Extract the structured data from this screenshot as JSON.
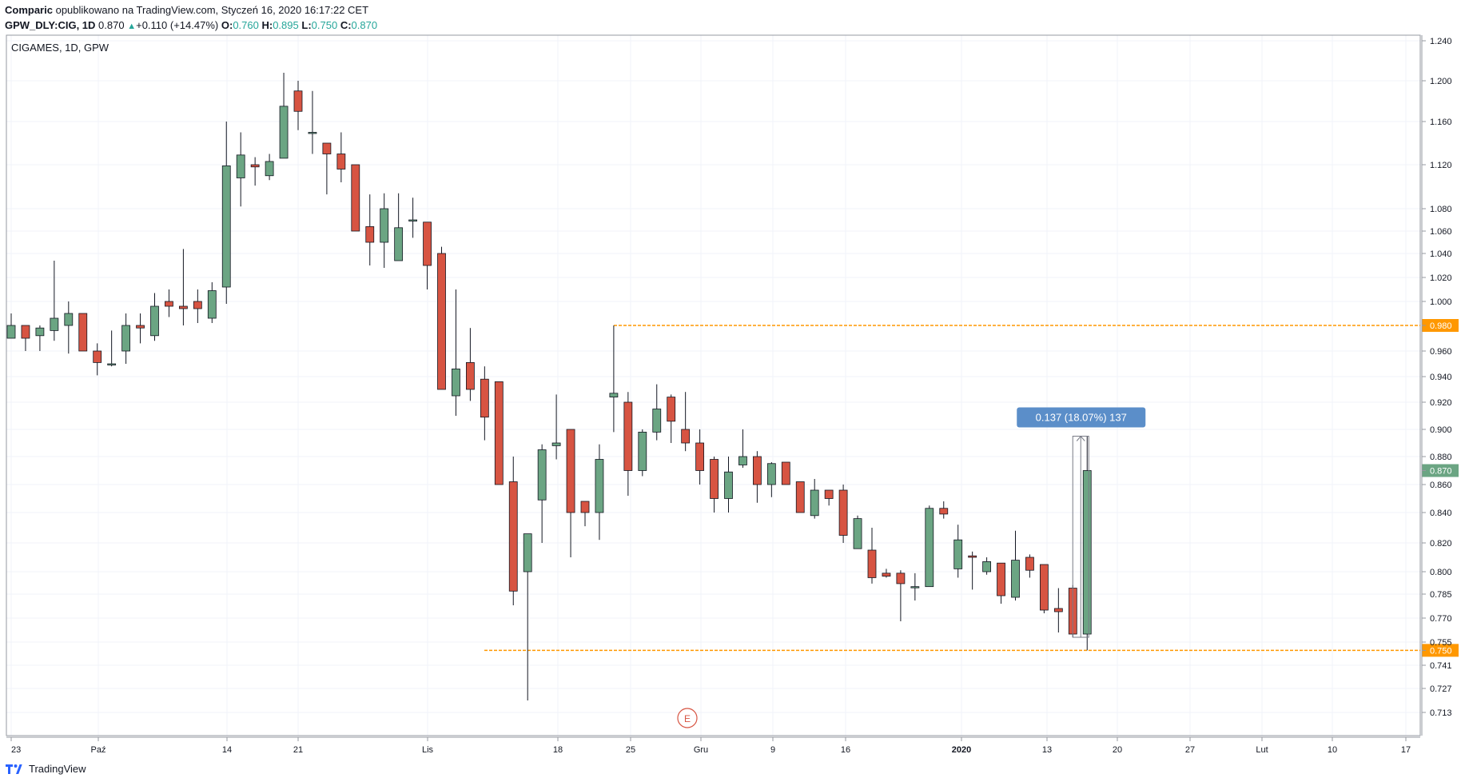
{
  "header": {
    "author": "Comparic",
    "published_text": "opublikowano na TradingView.com, Styczeń 16, 2020 16:17:22 CET",
    "symbol": "GPW_DLY:CIG, 1D",
    "last": "0.870",
    "change_arrow": "▲",
    "change": "+0.110 (+14.47%)",
    "o_label": "O:",
    "o_value": "0.760",
    "h_label": "H:",
    "h_value": "0.895",
    "l_label": "L:",
    "l_value": "0.750",
    "c_label": "C:",
    "c_value": "0.870"
  },
  "footer": {
    "brand": "TradingView"
  },
  "chart_data": {
    "type": "candlestick",
    "title": "CIGAMES, 1D, GPW",
    "colors": {
      "up": "#6ba583",
      "down": "#d75442",
      "level": "#ff9800",
      "measure": "#5b8ec9",
      "last": "#6ba583"
    },
    "y_ticks": [
      "1.240",
      "1.200",
      "1.160",
      "1.120",
      "1.080",
      "1.060",
      "1.040",
      "1.020",
      "1.000",
      "0.980",
      "0.960",
      "0.940",
      "0.920",
      "0.900",
      "0.880",
      "0.870",
      "0.860",
      "0.840",
      "0.820",
      "0.800",
      "0.785",
      "0.770",
      "0.755",
      "0.750",
      "0.741",
      "0.727",
      "0.713"
    ],
    "x_ticks": [
      "23",
      "Paź",
      "14",
      "21",
      "Lis",
      "18",
      "25",
      "Gru",
      "9",
      "16",
      "2020",
      "13",
      "20",
      "27",
      "Lut",
      "10",
      "17"
    ],
    "horizontal_levels": [
      {
        "value": 0.98,
        "label": "0.980"
      },
      {
        "value": 0.75,
        "label": "0.750"
      }
    ],
    "last_price": {
      "value": 0.87,
      "label": "0.870"
    },
    "measurement": {
      "from": 0.758,
      "to": 0.895,
      "label": "0.137 (18.07%) 137"
    },
    "event_marker": {
      "label": "E"
    },
    "candles": [
      {
        "o": 0.97,
        "h": 0.99,
        "l": 0.97,
        "c": 0.98
      },
      {
        "o": 0.98,
        "h": 0.98,
        "l": 0.96,
        "c": 0.97
      },
      {
        "o": 0.972,
        "h": 0.98,
        "l": 0.96,
        "c": 0.978
      },
      {
        "o": 0.976,
        "h": 1.034,
        "l": 0.968,
        "c": 0.986
      },
      {
        "o": 0.98,
        "h": 1.0,
        "l": 0.958,
        "c": 0.99
      },
      {
        "o": 0.99,
        "h": 0.99,
        "l": 0.96,
        "c": 0.96
      },
      {
        "o": 0.96,
        "h": 0.966,
        "l": 0.941,
        "c": 0.951
      },
      {
        "o": 0.95,
        "h": 0.976,
        "l": 0.948,
        "c": 0.95
      },
      {
        "o": 0.96,
        "h": 0.99,
        "l": 0.95,
        "c": 0.98
      },
      {
        "o": 0.98,
        "h": 0.99,
        "l": 0.966,
        "c": 0.978
      },
      {
        "o": 0.972,
        "h": 1.007,
        "l": 0.968,
        "c": 0.996
      },
      {
        "o": 1.0,
        "h": 1.01,
        "l": 0.987,
        "c": 0.996
      },
      {
        "o": 0.996,
        "h": 1.044,
        "l": 0.98,
        "c": 0.994
      },
      {
        "o": 1.0,
        "h": 1.01,
        "l": 0.982,
        "c": 0.994
      },
      {
        "o": 0.986,
        "h": 1.016,
        "l": 0.982,
        "c": 1.009
      },
      {
        "o": 1.012,
        "h": 1.16,
        "l": 0.998,
        "c": 1.119
      },
      {
        "o": 1.108,
        "h": 1.15,
        "l": 1.082,
        "c": 1.129
      },
      {
        "o": 1.12,
        "h": 1.127,
        "l": 1.101,
        "c": 1.118
      },
      {
        "o": 1.11,
        "h": 1.13,
        "l": 1.106,
        "c": 1.123
      },
      {
        "o": 1.126,
        "h": 1.208,
        "l": 1.127,
        "c": 1.175
      },
      {
        "o": 1.19,
        "h": 1.2,
        "l": 1.152,
        "c": 1.17
      },
      {
        "o": 1.15,
        "h": 1.19,
        "l": 1.13,
        "c": 1.15
      },
      {
        "o": 1.14,
        "h": 1.14,
        "l": 1.093,
        "c": 1.13
      },
      {
        "o": 1.13,
        "h": 1.15,
        "l": 1.104,
        "c": 1.116
      },
      {
        "o": 1.12,
        "h": 1.12,
        "l": 1.06,
        "c": 1.06
      },
      {
        "o": 1.064,
        "h": 1.093,
        "l": 1.03,
        "c": 1.05
      },
      {
        "o": 1.05,
        "h": 1.094,
        "l": 1.028,
        "c": 1.08
      },
      {
        "o": 1.034,
        "h": 1.094,
        "l": 1.034,
        "c": 1.063
      },
      {
        "o": 1.07,
        "h": 1.09,
        "l": 1.054,
        "c": 1.07
      },
      {
        "o": 1.068,
        "h": 1.068,
        "l": 1.01,
        "c": 1.03
      },
      {
        "o": 1.04,
        "h": 1.046,
        "l": 0.93,
        "c": 0.93
      },
      {
        "o": 0.925,
        "h": 1.01,
        "l": 0.91,
        "c": 0.946
      },
      {
        "o": 0.951,
        "h": 0.978,
        "l": 0.921,
        "c": 0.93
      },
      {
        "o": 0.938,
        "h": 0.948,
        "l": 0.892,
        "c": 0.909
      },
      {
        "o": 0.936,
        "h": 0.936,
        "l": 0.86,
        "c": 0.86
      },
      {
        "o": 0.862,
        "h": 0.88,
        "l": 0.778,
        "c": 0.787
      },
      {
        "o": 0.8,
        "h": 0.826,
        "l": 0.72,
        "c": 0.826
      },
      {
        "o": 0.849,
        "h": 0.889,
        "l": 0.82,
        "c": 0.885
      },
      {
        "o": 0.888,
        "h": 0.926,
        "l": 0.878,
        "c": 0.89
      },
      {
        "o": 0.9,
        "h": 0.9,
        "l": 0.81,
        "c": 0.84
      },
      {
        "o": 0.848,
        "h": 0.848,
        "l": 0.831,
        "c": 0.84
      },
      {
        "o": 0.84,
        "h": 0.889,
        "l": 0.822,
        "c": 0.878
      },
      {
        "o": 0.924,
        "h": 0.98,
        "l": 0.898,
        "c": 0.927
      },
      {
        "o": 0.92,
        "h": 0.928,
        "l": 0.852,
        "c": 0.87
      },
      {
        "o": 0.87,
        "h": 0.9,
        "l": 0.866,
        "c": 0.898
      },
      {
        "o": 0.898,
        "h": 0.934,
        "l": 0.892,
        "c": 0.915
      },
      {
        "o": 0.924,
        "h": 0.926,
        "l": 0.89,
        "c": 0.906
      },
      {
        "o": 0.9,
        "h": 0.928,
        "l": 0.884,
        "c": 0.89
      },
      {
        "o": 0.89,
        "h": 0.9,
        "l": 0.86,
        "c": 0.87
      },
      {
        "o": 0.878,
        "h": 0.88,
        "l": 0.84,
        "c": 0.85
      },
      {
        "o": 0.85,
        "h": 0.88,
        "l": 0.84,
        "c": 0.869
      },
      {
        "o": 0.874,
        "h": 0.9,
        "l": 0.872,
        "c": 0.88
      },
      {
        "o": 0.88,
        "h": 0.884,
        "l": 0.847,
        "c": 0.86
      },
      {
        "o": 0.86,
        "h": 0.876,
        "l": 0.851,
        "c": 0.875
      },
      {
        "o": 0.876,
        "h": 0.876,
        "l": 0.86,
        "c": 0.86
      },
      {
        "o": 0.862,
        "h": 0.862,
        "l": 0.84,
        "c": 0.84
      },
      {
        "o": 0.838,
        "h": 0.864,
        "l": 0.836,
        "c": 0.856
      },
      {
        "o": 0.856,
        "h": 0.856,
        "l": 0.845,
        "c": 0.85
      },
      {
        "o": 0.856,
        "h": 0.86,
        "l": 0.82,
        "c": 0.825
      },
      {
        "o": 0.816,
        "h": 0.838,
        "l": 0.816,
        "c": 0.836
      },
      {
        "o": 0.815,
        "h": 0.83,
        "l": 0.792,
        "c": 0.796
      },
      {
        "o": 0.799,
        "h": 0.802,
        "l": 0.796,
        "c": 0.797
      },
      {
        "o": 0.799,
        "h": 0.801,
        "l": 0.768,
        "c": 0.792
      },
      {
        "o": 0.79,
        "h": 0.799,
        "l": 0.781,
        "c": 0.79
      },
      {
        "o": 0.79,
        "h": 0.845,
        "l": 0.79,
        "c": 0.843
      },
      {
        "o": 0.843,
        "h": 0.848,
        "l": 0.836,
        "c": 0.839
      },
      {
        "o": 0.802,
        "h": 0.832,
        "l": 0.796,
        "c": 0.822
      },
      {
        "o": 0.811,
        "h": 0.814,
        "l": 0.788,
        "c": 0.81
      },
      {
        "o": 0.8,
        "h": 0.81,
        "l": 0.798,
        "c": 0.807
      },
      {
        "o": 0.806,
        "h": 0.806,
        "l": 0.779,
        "c": 0.784
      },
      {
        "o": 0.783,
        "h": 0.828,
        "l": 0.781,
        "c": 0.808
      },
      {
        "o": 0.81,
        "h": 0.812,
        "l": 0.796,
        "c": 0.801
      },
      {
        "o": 0.805,
        "h": 0.805,
        "l": 0.773,
        "c": 0.775
      },
      {
        "o": 0.776,
        "h": 0.789,
        "l": 0.761,
        "c": 0.774
      },
      {
        "o": 0.789,
        "h": 0.791,
        "l": 0.758,
        "c": 0.76
      },
      {
        "o": 0.76,
        "h": 0.895,
        "l": 0.75,
        "c": 0.87
      }
    ]
  }
}
